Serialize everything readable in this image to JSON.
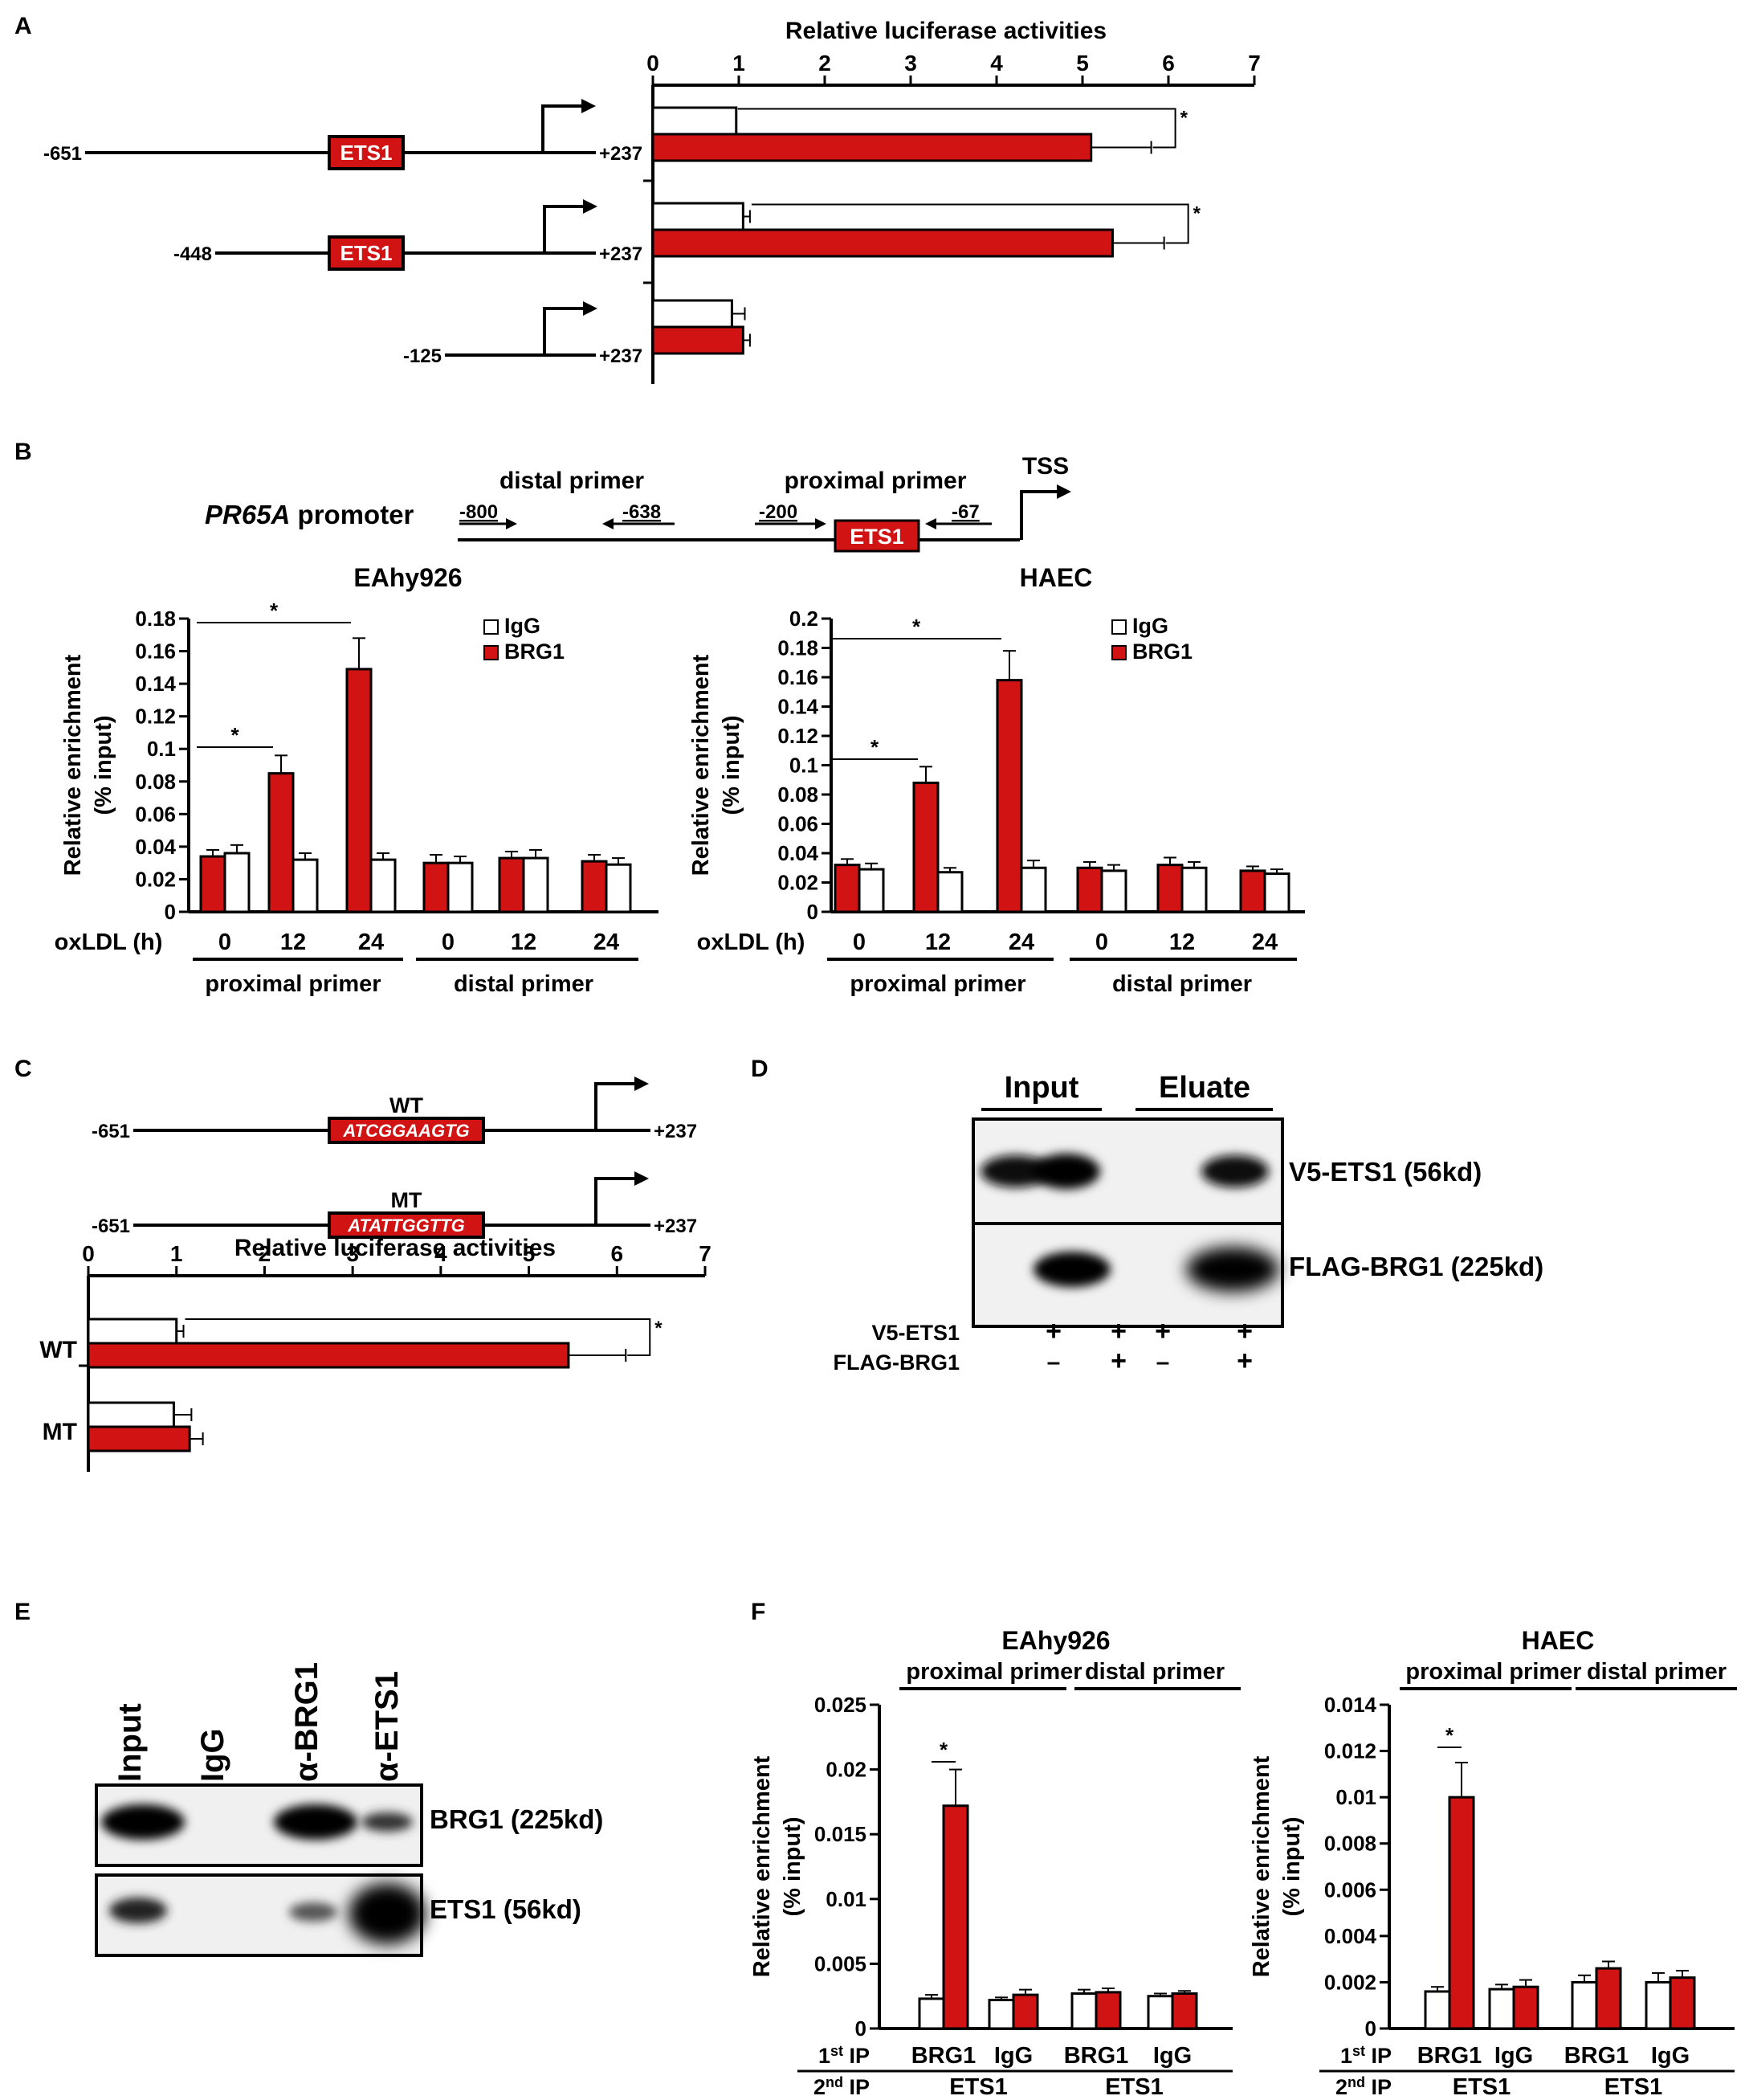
{
  "panels": {
    "A": "A",
    "B": "B",
    "C": "C",
    "D": "D",
    "E": "E",
    "F": "F"
  },
  "colors": {
    "brg1_bar": "#d11313",
    "igg_bar": "#ffffff",
    "ets1_box": "#d11313",
    "line": "#000000"
  },
  "panel_a": {
    "constructs": [
      {
        "start": "-651",
        "end": "+237",
        "has_ets1": true,
        "ets1_label": "ETS1"
      },
      {
        "start": "-448",
        "end": "+237",
        "has_ets1": true,
        "ets1_label": "ETS1"
      },
      {
        "start": "-125",
        "end": "+237",
        "has_ets1": false,
        "ets1_label": ""
      }
    ]
  },
  "panel_b": {
    "promoter_label_italic": "PR65A",
    "promoter_label_rest": " promoter",
    "distal_primer_label": "distal primer",
    "proximal_primer_label": "proximal primer",
    "tss_label": "TSS",
    "pos_m800": "-800",
    "pos_m638": "-638",
    "pos_m200": "-200",
    "pos_m67": "-67",
    "ets1_label": "ETS1",
    "xaxis_title": "oxLDL (h)",
    "group_labels": [
      "proximal primer",
      "distal primer"
    ]
  },
  "panel_c": {
    "constructs": [
      {
        "name": "WT",
        "start": "-651",
        "end": "+237",
        "sequence": "ATCGGAAGTG"
      },
      {
        "name": "MT",
        "start": "-651",
        "end": "+237",
        "sequence": "ATATTGGTTG"
      }
    ]
  },
  "panel_d": {
    "col_headers": [
      "Input",
      "Eluate"
    ],
    "band_labels": [
      "V5-ETS1 (56kd)",
      "FLAG-BRG1 (225kd)"
    ],
    "row_labels": [
      "V5-ETS1",
      "FLAG-BRG1"
    ],
    "lanes": [
      [
        "+",
        "-"
      ],
      [
        "+",
        "+"
      ],
      [
        "+",
        "-"
      ],
      [
        "+",
        "+"
      ]
    ]
  },
  "panel_e": {
    "lane_labels": [
      "Input",
      "IgG",
      "α-BRG1",
      "α-ETS1"
    ],
    "band_labels": [
      "BRG1 (225kd)",
      "ETS1 (56kd)"
    ]
  },
  "panel_f": {
    "first_ip_label": "1st IP",
    "second_ip_label": "2nd IP",
    "first_ip_values": [
      "BRG1",
      "IgG",
      "BRG1",
      "IgG"
    ],
    "second_ip_values": [
      "ETS1",
      "ETS1"
    ],
    "group_labels": [
      "proximal primer",
      "distal primer"
    ]
  },
  "chart_data": [
    {
      "id": "A",
      "type": "bar",
      "orientation": "horizontal",
      "title": "Relative luciferase activities",
      "xlim": [
        0,
        7
      ],
      "ticks": [
        0,
        1,
        2,
        3,
        4,
        5,
        6,
        7
      ],
      "categories": [
        "-651/+237",
        "-448/+237",
        "-125/+237"
      ],
      "series": [
        {
          "values": [
            0.97,
            1.05,
            0.92
          ],
          "errors": [
            0.0,
            0.08,
            0.15
          ],
          "color": "#ffffff"
        },
        {
          "values": [
            5.1,
            5.35,
            1.05
          ],
          "errors": [
            0.7,
            0.6,
            0.08
          ],
          "color": "#d11313"
        }
      ],
      "significance": [
        {
          "category": 0,
          "label": "*"
        },
        {
          "category": 1,
          "label": "*"
        }
      ]
    },
    {
      "id": "B-EAhy926",
      "type": "bar",
      "title": "EAhy926",
      "ylabel": "Relative enrichment\n(% input)",
      "ylim": [
        0,
        0.18
      ],
      "ticks": [
        "0",
        "0.02",
        "0.04",
        "0.06",
        "0.08",
        "0.1",
        "0.12",
        "0.14",
        "0.16",
        "0.18"
      ],
      "categories": [
        "0",
        "12",
        "24",
        "0",
        "12",
        "24"
      ],
      "series": [
        {
          "name": "BRG1",
          "values": [
            0.034,
            0.085,
            0.149,
            0.03,
            0.033,
            0.031
          ],
          "errors": [
            0.004,
            0.011,
            0.019,
            0.005,
            0.004,
            0.004
          ],
          "color": "#d11313"
        },
        {
          "name": "IgG",
          "values": [
            0.036,
            0.032,
            0.032,
            0.03,
            0.033,
            0.029
          ],
          "errors": [
            0.005,
            0.004,
            0.004,
            0.004,
            0.005,
            0.004
          ],
          "color": "#ffffff"
        }
      ],
      "significance": [
        {
          "from": 0,
          "to": 1,
          "label": "*"
        },
        {
          "from": 0,
          "to": 2,
          "label": "*"
        }
      ],
      "legend": "top-right"
    },
    {
      "id": "B-HAEC",
      "type": "bar",
      "title": "HAEC",
      "ylabel": "Relative enrichment\n(% input)",
      "ylim": [
        0,
        0.2
      ],
      "ticks": [
        "0",
        "0.02",
        "0.04",
        "0.06",
        "0.08",
        "0.1",
        "0.12",
        "0.14",
        "0.16",
        "0.18",
        "0.2"
      ],
      "categories": [
        "0",
        "12",
        "24",
        "0",
        "12",
        "24"
      ],
      "series": [
        {
          "name": "BRG1",
          "values": [
            0.032,
            0.088,
            0.158,
            0.03,
            0.032,
            0.028
          ],
          "errors": [
            0.004,
            0.011,
            0.02,
            0.004,
            0.005,
            0.003
          ],
          "color": "#d11313"
        },
        {
          "name": "IgG",
          "values": [
            0.029,
            0.027,
            0.03,
            0.028,
            0.03,
            0.026
          ],
          "errors": [
            0.004,
            0.003,
            0.005,
            0.004,
            0.004,
            0.003
          ],
          "color": "#ffffff"
        }
      ],
      "significance": [
        {
          "from": 0,
          "to": 1,
          "label": "*"
        },
        {
          "from": 0,
          "to": 2,
          "label": "*"
        }
      ],
      "legend": "top-right"
    },
    {
      "id": "C",
      "type": "bar",
      "orientation": "horizontal",
      "title": "Relative luciferase activities",
      "xlim": [
        0,
        7
      ],
      "ticks": [
        0,
        1,
        2,
        3,
        4,
        5,
        6,
        7
      ],
      "categories": [
        "WT",
        "MT"
      ],
      "series": [
        {
          "values": [
            1.0,
            0.97
          ],
          "errors": [
            0.08,
            0.2
          ],
          "color": "#ffffff"
        },
        {
          "values": [
            5.45,
            1.15
          ],
          "errors": [
            0.65,
            0.15
          ],
          "color": "#d11313"
        }
      ],
      "significance": [
        {
          "category": 0,
          "label": "*"
        }
      ]
    },
    {
      "id": "F-EAhy926",
      "type": "bar",
      "title": "EAhy926",
      "ylabel": "Relative enrichment\n(% input)",
      "ylim": [
        0,
        0.025
      ],
      "ticks": [
        "0",
        "0.005",
        "0.01",
        "0.015",
        "0.02",
        "0.025"
      ],
      "categories": [
        "BRG1",
        "IgG",
        "BRG1",
        "IgG"
      ],
      "series": [
        {
          "values": [
            0.0023,
            0.0022,
            0.0027,
            0.0025
          ],
          "errors": [
            0.0003,
            0.0002,
            0.0003,
            0.0002
          ],
          "color": "#ffffff"
        },
        {
          "values": [
            0.0172,
            0.0026,
            0.0028,
            0.0027
          ],
          "errors": [
            0.0028,
            0.0004,
            0.0003,
            0.0002
          ],
          "color": "#d11313"
        }
      ],
      "significance": [
        {
          "category": 0,
          "label": "*"
        }
      ]
    },
    {
      "id": "F-HAEC",
      "type": "bar",
      "title": "HAEC",
      "ylabel": "Relative enrichment\n(% input)",
      "ylim": [
        0,
        0.014
      ],
      "ticks": [
        "0",
        "0.002",
        "0.004",
        "0.006",
        "0.008",
        "0.01",
        "0.012",
        "0.014"
      ],
      "categories": [
        "BRG1",
        "IgG",
        "BRG1",
        "IgG"
      ],
      "series": [
        {
          "values": [
            0.0016,
            0.0017,
            0.002,
            0.002
          ],
          "errors": [
            0.0002,
            0.0002,
            0.0003,
            0.0004
          ],
          "color": "#ffffff"
        },
        {
          "values": [
            0.01,
            0.0018,
            0.0026,
            0.0022
          ],
          "errors": [
            0.0015,
            0.0003,
            0.0003,
            0.0003
          ],
          "color": "#d11313"
        }
      ],
      "significance": [
        {
          "category": 0,
          "label": "*"
        }
      ]
    }
  ]
}
